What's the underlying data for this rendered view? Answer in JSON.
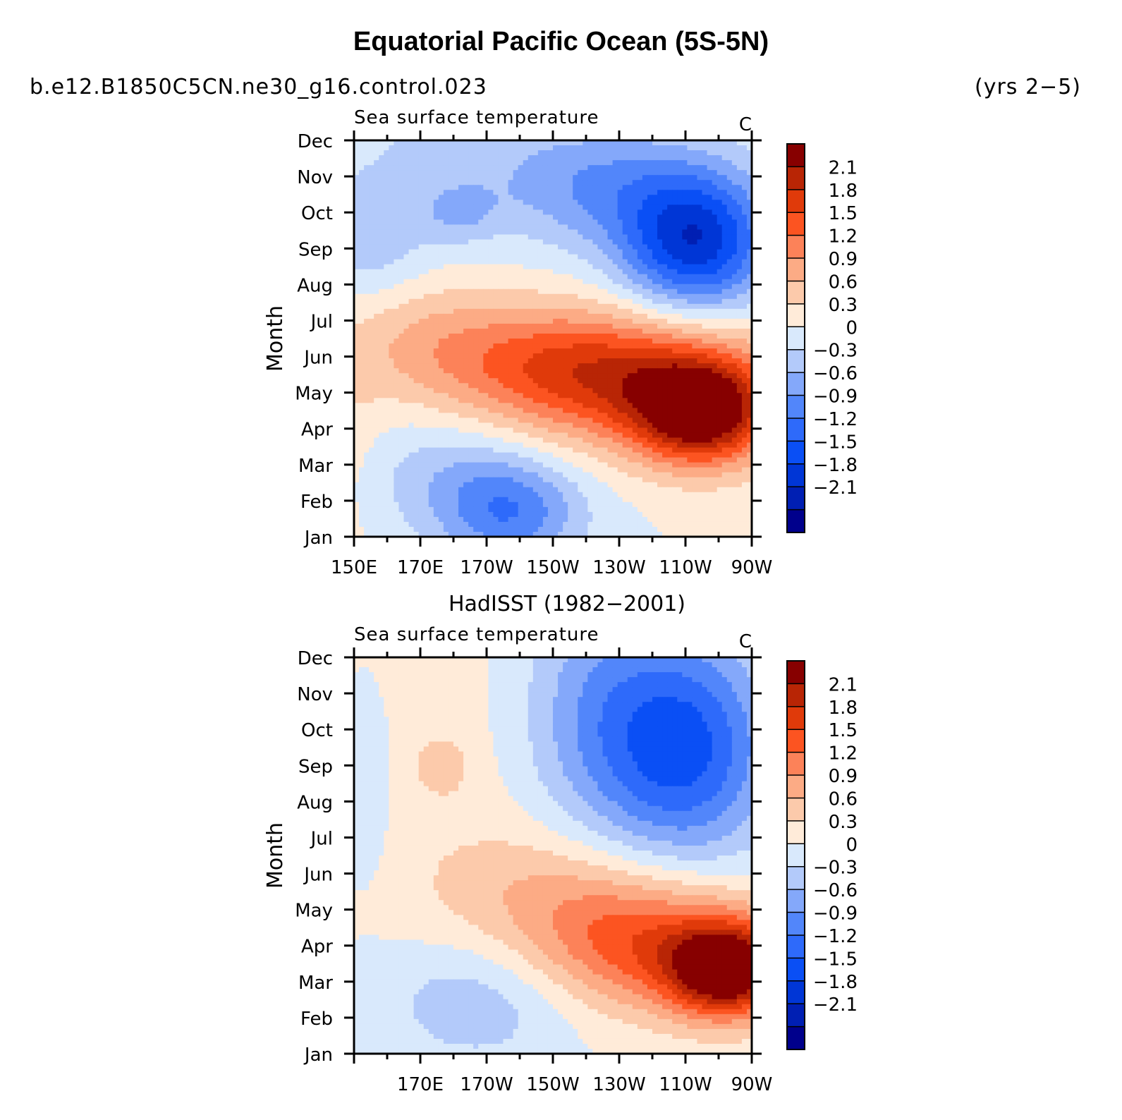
{
  "figure": {
    "title": "Equatorial Pacific Ocean (5S-5N)",
    "case_name": "b.e12.B1850C5CN.ne30_g16.control.023",
    "years": "(yrs 2−5)"
  },
  "colors": {
    "levels": [
      "#00008c",
      "#001fb3",
      "#0036d6",
      "#0a4ff5",
      "#2e6afa",
      "#5286fa",
      "#84a8fa",
      "#b3cafa",
      "#d9e9fc",
      "#ffebd9",
      "#fccaab",
      "#fcab85",
      "#fc8259",
      "#fc5421",
      "#e03a0a",
      "#b82505",
      "#870000"
    ]
  },
  "chart_data": [
    {
      "type": "contour",
      "subtitle": "",
      "title": "Sea surface temperature",
      "units": "C",
      "xlabel": "",
      "ylabel": "Month",
      "x_tick_labels": [
        "150E",
        "170E",
        "170W",
        "150W",
        "130W",
        "110W",
        "90W"
      ],
      "y_tick_labels": [
        "Jan",
        "Feb",
        "Mar",
        "Apr",
        "May",
        "Jun",
        "Jul",
        "Aug",
        "Sep",
        "Oct",
        "Nov",
        "Dec"
      ],
      "xlim": [
        150,
        270
      ],
      "ylim": [
        1,
        12
      ],
      "colorbar_labels": [
        "2.1",
        "1.8",
        "1.5",
        "1.2",
        "0.9",
        "0.6",
        "0.3",
        "0",
        "−0.3",
        "−0.6",
        "−0.9",
        "−1.2",
        "−1.5",
        "−1.8",
        "−2.1"
      ],
      "anchors": [
        {
          "lon": 255,
          "month": 4.4,
          "value": 2.1,
          "sx": 14,
          "sy": 1.0
        },
        {
          "lon": 232,
          "month": 5.3,
          "value": 1.5,
          "sx": 32,
          "sy": 1.3
        },
        {
          "lon": 200,
          "month": 6.0,
          "value": 0.6,
          "sx": 32,
          "sy": 1.1
        },
        {
          "lon": 170,
          "month": 6.8,
          "value": 0.3,
          "sx": 18,
          "sy": 1.1
        },
        {
          "lon": 253,
          "month": 9.2,
          "value": -2.0,
          "sx": 16,
          "sy": 1.4
        },
        {
          "lon": 222,
          "month": 10.8,
          "value": -0.8,
          "sx": 22,
          "sy": 1.2
        },
        {
          "lon": 197,
          "month": 1.6,
          "value": -1.0,
          "sx": 15,
          "sy": 1.0
        },
        {
          "lon": 182,
          "month": 2.8,
          "value": -0.5,
          "sx": 22,
          "sy": 1.2
        },
        {
          "lon": 155,
          "month": 9.4,
          "value": -0.5,
          "sx": 12,
          "sy": 1.3
        },
        {
          "lon": 182,
          "month": 10.0,
          "value": -0.45,
          "sx": 8,
          "sy": 0.6
        },
        {
          "lon": 170,
          "month": 11.5,
          "value": -0.25,
          "sx": 30,
          "sy": 1.5
        },
        {
          "lon": 150,
          "month": 3.5,
          "value": 0.2,
          "sx": 7,
          "sy": 2.0
        },
        {
          "lon": 150,
          "month": 11.8,
          "value": 0.2,
          "sx": 5,
          "sy": 0.6
        }
      ]
    },
    {
      "type": "contour",
      "subtitle": "HadISST (1982−2001)",
      "title": "Sea surface temperature",
      "units": "C",
      "xlabel": "",
      "ylabel": "Month",
      "x_tick_labels": [
        "",
        "170E",
        "170W",
        "150W",
        "130W",
        "110W",
        "90W"
      ],
      "y_tick_labels": [
        "Jan",
        "Feb",
        "Mar",
        "Apr",
        "May",
        "Jun",
        "Jul",
        "Aug",
        "Sep",
        "Oct",
        "Nov",
        "Dec"
      ],
      "xlim": [
        150,
        270
      ],
      "ylim": [
        1,
        12
      ],
      "colorbar_labels": [
        "2.1",
        "1.8",
        "1.5",
        "1.2",
        "0.9",
        "0.6",
        "0.3",
        "0",
        "−0.3",
        "−0.6",
        "−0.9",
        "−1.2",
        "−1.5",
        "−1.8",
        "−2.1"
      ],
      "anchors": [
        {
          "lon": 263,
          "month": 3.3,
          "value": 2.3,
          "sx": 12,
          "sy": 0.9
        },
        {
          "lon": 240,
          "month": 4.0,
          "value": 1.4,
          "sx": 25,
          "sy": 1.3
        },
        {
          "lon": 208,
          "month": 5.5,
          "value": 0.5,
          "sx": 25,
          "sy": 1.3
        },
        {
          "lon": 250,
          "month": 9.5,
          "value": -1.6,
          "sx": 18,
          "sy": 2.2
        },
        {
          "lon": 222,
          "month": 10.5,
          "value": -0.7,
          "sx": 16,
          "sy": 2.5
        },
        {
          "lon": 188,
          "month": 2.5,
          "value": -0.55,
          "sx": 22,
          "sy": 1.3
        },
        {
          "lon": 153,
          "month": 8.5,
          "value": -0.4,
          "sx": 6,
          "sy": 2.0
        },
        {
          "lon": 177,
          "month": 9.0,
          "value": 0.35,
          "sx": 6,
          "sy": 0.6
        },
        {
          "lon": 165,
          "month": 9.0,
          "value": 0.15,
          "sx": 35,
          "sy": 4.0
        }
      ]
    }
  ]
}
